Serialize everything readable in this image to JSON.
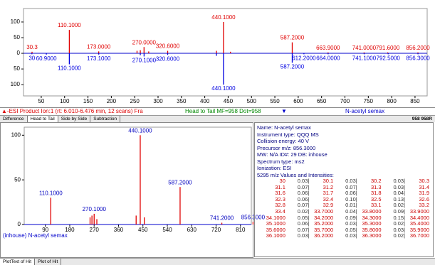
{
  "chart_data": [
    {
      "type": "spectrum",
      "xlim": [
        12,
        876
      ],
      "ylim": [
        -136,
        143
      ],
      "xticks": [
        50,
        100,
        150,
        200,
        250,
        300,
        350,
        400,
        450,
        500,
        550,
        600,
        650,
        700,
        750,
        800,
        850
      ],
      "yticks": [
        100,
        50,
        0,
        {
          "value": -50,
          "label": "50"
        },
        {
          "value": -100,
          "label": "100"
        }
      ],
      "series": [
        {
          "color": "#e00000",
          "x": [
            30.3,
            110.1,
            173,
            255,
            262,
            270,
            280,
            320.6,
            425,
            440.1,
            455,
            587.2,
            663.9,
            741,
            791.6,
            856.2
          ],
          "values": [
            5,
            75,
            6,
            8,
            10,
            20,
            6,
            8,
            8,
            100,
            5,
            35,
            3,
            3,
            3,
            3
          ],
          "x_labels": [
            "30.3",
            "110.1000",
            "173.0000",
            null,
            null,
            "270.0000",
            null,
            "320.6000",
            null,
            "440.1000",
            null,
            "587.2000",
            "663.9000",
            "741.0000",
            "791.6000",
            "856.2000"
          ]
        },
        {
          "color": "#0000e0",
          "x": [
            30,
            60.9,
            110.1,
            173.1,
            262,
            270.1,
            320.6,
            425,
            440.1,
            587.2,
            612.2,
            664,
            741.1,
            792.5,
            856.3
          ],
          "values": [
            -3,
            -4,
            -35,
            -4,
            -6,
            -10,
            -5,
            -8,
            -100,
            -30,
            -3,
            -3,
            -3,
            -3,
            -3
          ],
          "x_labels": [
            "30",
            "60.9000",
            "110.1000",
            "173.1000",
            null,
            "270.1000",
            "320.6000",
            null,
            "440.1000",
            "587.2000",
            "612.2000",
            "664.0000",
            "741.1000",
            "792.5000",
            "856.3000"
          ]
        }
      ]
    },
    {
      "type": "spectrum",
      "caption": "(inhouse) N-acetyl semax",
      "xlim": [
        12,
        850
      ],
      "ylim": [
        0,
        109
      ],
      "xticks": [
        90,
        180,
        270,
        360,
        450,
        540,
        630,
        720,
        810
      ],
      "yticks": [
        0,
        50,
        100
      ],
      "series": [
        {
          "color": "#e00000",
          "label_color": "#0000c0",
          "x": [
            110.1,
            255,
            262,
            270.1,
            280,
            425,
            440.1,
            455,
            587.2,
            741.2,
            856.3
          ],
          "values": [
            30,
            8,
            10,
            12,
            6,
            10,
            100,
            8,
            42,
            2,
            3
          ],
          "x_labels": [
            "110.1000",
            null,
            null,
            "270.1000",
            null,
            null,
            "440.1000",
            null,
            "587.2000",
            "741.2000",
            "856.3000"
          ]
        }
      ]
    }
  ],
  "status": {
    "left": "▲-ESI Product Ion:1 (rt: 6.010-6.476 min, 12 scans) Fra",
    "center": "Head to Tail MF=958 Dot=958",
    "arrow": "▼",
    "right": "N-acetyl semax"
  },
  "tabs": [
    "Difference",
    "Head to Tail",
    "Side by Side",
    "Subtraction"
  ],
  "tabs_right": "958 958R",
  "info": [
    "Name: N-acetyl semax",
    "Instrument type: QQQ MS",
    "Collision energy: 40 V",
    "Precursor m/z: 856.3000",
    "MW: N/A ID#: 29 DB: inhouse",
    "Spectrum type: ms2",
    "Ionization: ESI",
    "5295 m/z Values and Intensities:"
  ],
  "table": {
    "rows": [
      [
        "30",
        "0.03|",
        "30.1",
        "0.03|",
        "30.2",
        "0.03|",
        "30.3"
      ],
      [
        "31.1",
        "0.07|",
        "31.2",
        "0.07|",
        "31.3",
        "0.03|",
        "31.4"
      ],
      [
        "31.6",
        "0.06|",
        "31.7",
        "0.06|",
        "31.8",
        "0.04|",
        "31.9"
      ],
      [
        "32.3",
        "0.06|",
        "32.4",
        "0.10|",
        "32.5",
        "0.13|",
        "32.6"
      ],
      [
        "32.8",
        "0.07|",
        "32.9",
        "0.01|",
        "33.1",
        "0.02|",
        "33.2"
      ],
      [
        "33.4",
        "0.02|",
        "33.7000",
        "0.04|",
        "33.8000",
        "0.09|",
        "33.9000"
      ],
      [
        "34.1000",
        "0.05|",
        "34.2000",
        "0.09|",
        "34.3000",
        "0.15|",
        "34.4000"
      ],
      [
        "35.1000",
        "0.06|",
        "35.2000",
        "0.03|",
        "35.3000",
        "0.02|",
        "35.4000"
      ],
      [
        "35.6000",
        "0.07|",
        "35.7000",
        "0.05|",
        "35.8000",
        "0.03|",
        "35.9000"
      ],
      [
        "36.1000",
        "0.03|",
        "36.2000",
        "0.03|",
        "36.3000",
        "0.02|",
        "36.7000"
      ]
    ]
  },
  "bottom_tabs": [
    "PlotText of Hit",
    "Plot of Hit"
  ]
}
